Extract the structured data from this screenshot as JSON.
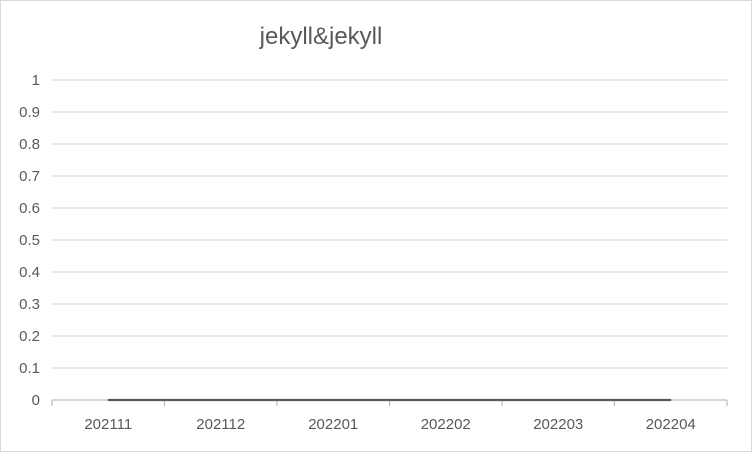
{
  "chart_data": {
    "type": "line",
    "title": "jekyll&jekyll",
    "categories": [
      "202111",
      "202112",
      "202201",
      "202202",
      "202203",
      "202204"
    ],
    "series": [
      {
        "values": [
          0,
          0,
          0,
          0,
          0,
          0
        ]
      }
    ],
    "ylim": [
      0,
      1
    ],
    "yticks": [
      "0",
      "0.1",
      "0.2",
      "0.3",
      "0.4",
      "0.5",
      "0.6",
      "0.7",
      "0.8",
      "0.9",
      "1"
    ],
    "grid": true,
    "legend": "none",
    "colors": {
      "line": "#595959",
      "grid": "#d9d9d9",
      "axis": "#bfbfbf",
      "text": "#595959"
    }
  }
}
